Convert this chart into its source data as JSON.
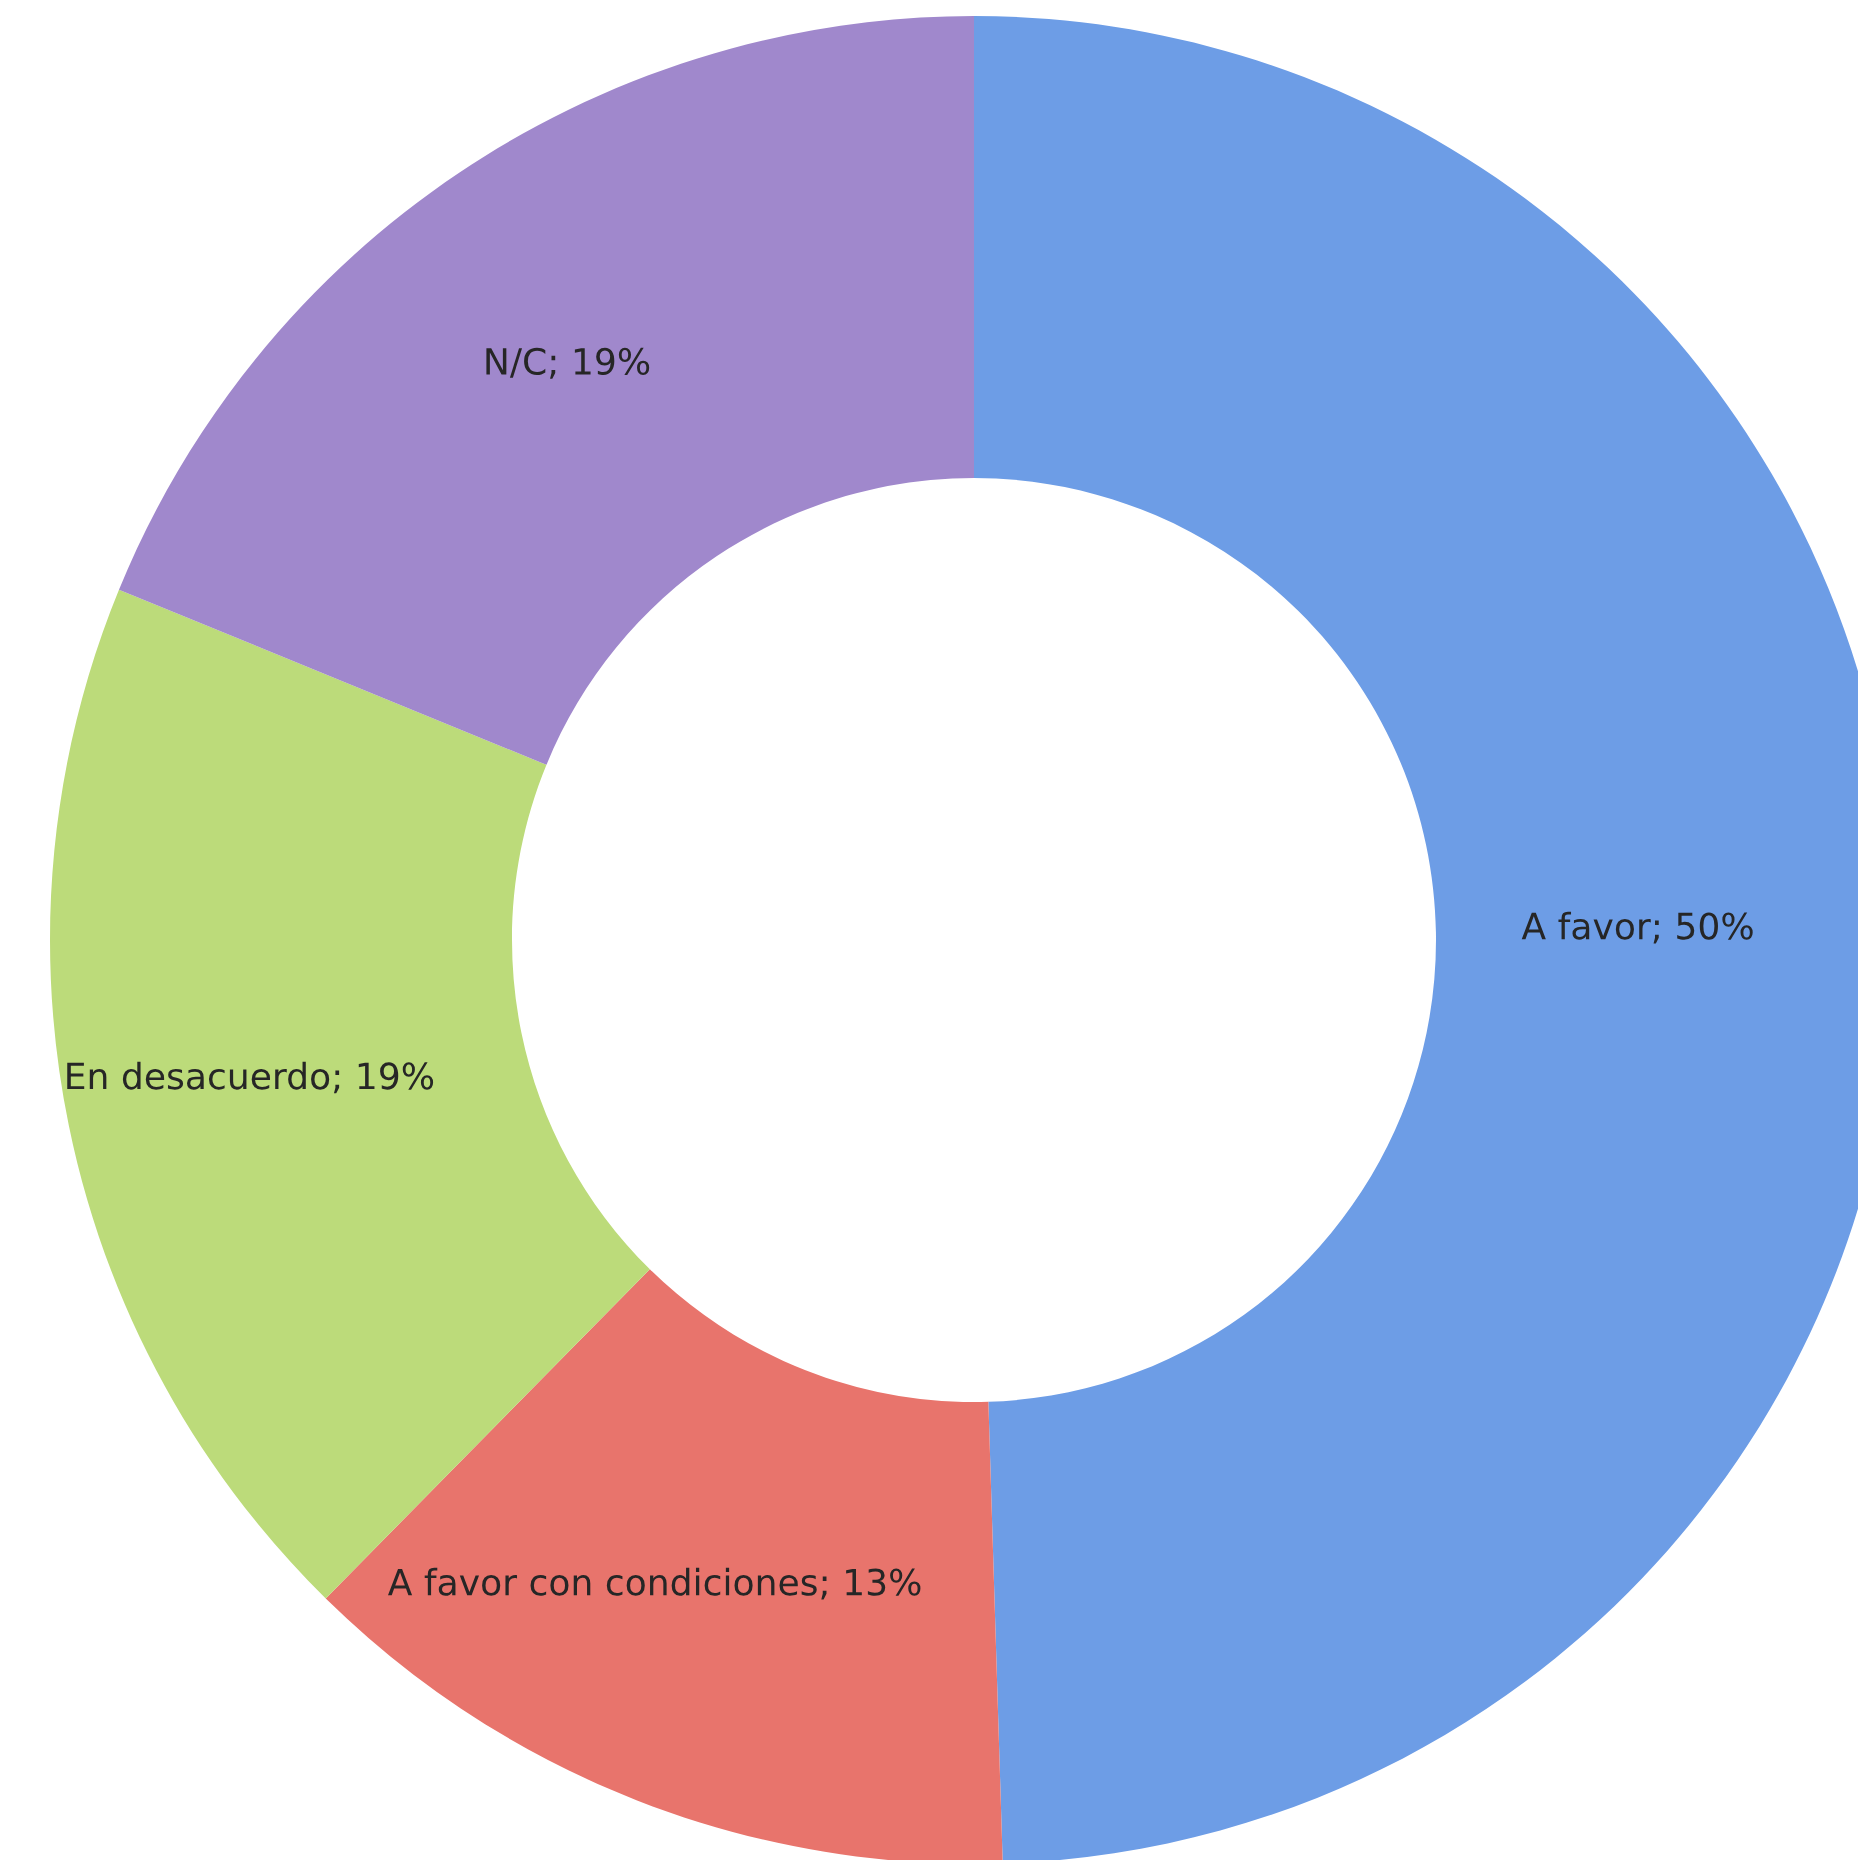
{
  "chart_data": {
    "type": "donut",
    "categories": [
      "A favor",
      "A favor con condiciones",
      "En desacuerdo",
      "N/C"
    ],
    "values": [
      50,
      13,
      19,
      19
    ],
    "colors": [
      "#6d9de6",
      "#e8746c",
      "#bcdb7a",
      "#a088cc"
    ],
    "value_labels": [
      "; 50%",
      "; 13%",
      "; 19%",
      "; 19%"
    ],
    "legend": false
  }
}
